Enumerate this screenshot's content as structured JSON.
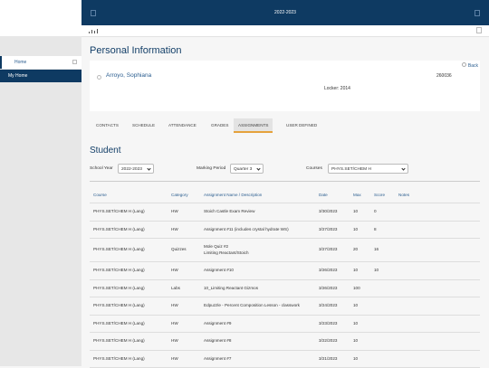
{
  "header": {
    "term": "2022-2023"
  },
  "sidebar": {
    "items": [
      "Home",
      "My Home"
    ]
  },
  "page": {
    "title": "Personal Information",
    "back": "Back"
  },
  "student": {
    "name": "Arroyo, Sophiana",
    "id": "260036",
    "locker_label": "Locker:",
    "locker": "2014"
  },
  "tabs": {
    "items": [
      "CONTACTS",
      "SCHEDULE",
      "ATTENDANCE",
      "GRADES",
      "ASSIGNMENTS",
      "USER DEFINED"
    ],
    "active": 4
  },
  "section": {
    "title": "Student"
  },
  "filters": [
    {
      "label": "School Year",
      "value": "2022-2023"
    },
    {
      "label": "Marking Period",
      "value": "Quarter 3"
    },
    {
      "label": "Courses",
      "value": "PHYS.SET/CHEM H"
    }
  ],
  "table": {
    "columns": [
      "Course",
      "Category",
      "Assignment Name / Description",
      "Date",
      "Max",
      "Score",
      "Notes"
    ],
    "rows": [
      {
        "course": "PHYS.SET/CHEM H (Lang)",
        "category": "HW",
        "name": "Stoich Castle Exam Review",
        "date": "3/30/2023",
        "max": 10,
        "score": 0
      },
      {
        "course": "PHYS.SET/CHEM H (Lang)",
        "category": "HW",
        "name": "Assignment #11 (includes crystal hydrate WS)",
        "date": "3/27/2023",
        "max": 10,
        "score": 8
      },
      {
        "course": "PHYS.SET/CHEM H (Lang)",
        "category": "Quizzes",
        "name": "Mole Quiz #2",
        "description": "Limiting Reactant/Stoich",
        "date": "3/27/2023",
        "max": 20,
        "score": 16
      },
      {
        "course": "PHYS.SET/CHEM H (Lang)",
        "category": "HW",
        "name": "Assignment #10",
        "date": "3/26/2023",
        "max": 10,
        "score": 10
      },
      {
        "course": "PHYS.SET/CHEM H (Lang)",
        "category": "Labs",
        "name": "10_Limiting Reactant Gizmos",
        "date": "3/26/2023",
        "max": 100
      },
      {
        "course": "PHYS.SET/CHEM H (Lang)",
        "category": "HW",
        "name": "Edpuzzle - Percent Composition Lesson - classwork",
        "date": "3/24/2023",
        "max": 10
      },
      {
        "course": "PHYS.SET/CHEM H (Lang)",
        "category": "HW",
        "name": "Assignment #9",
        "date": "3/23/2023",
        "max": 10
      },
      {
        "course": "PHYS.SET/CHEM H (Lang)",
        "category": "HW",
        "name": "Assignment #8",
        "date": "3/22/2023",
        "max": 10
      },
      {
        "course": "PHYS.SET/CHEM H (Lang)",
        "category": "HW",
        "name": "Assignment #7",
        "date": "3/21/2023",
        "max": 10
      }
    ]
  }
}
